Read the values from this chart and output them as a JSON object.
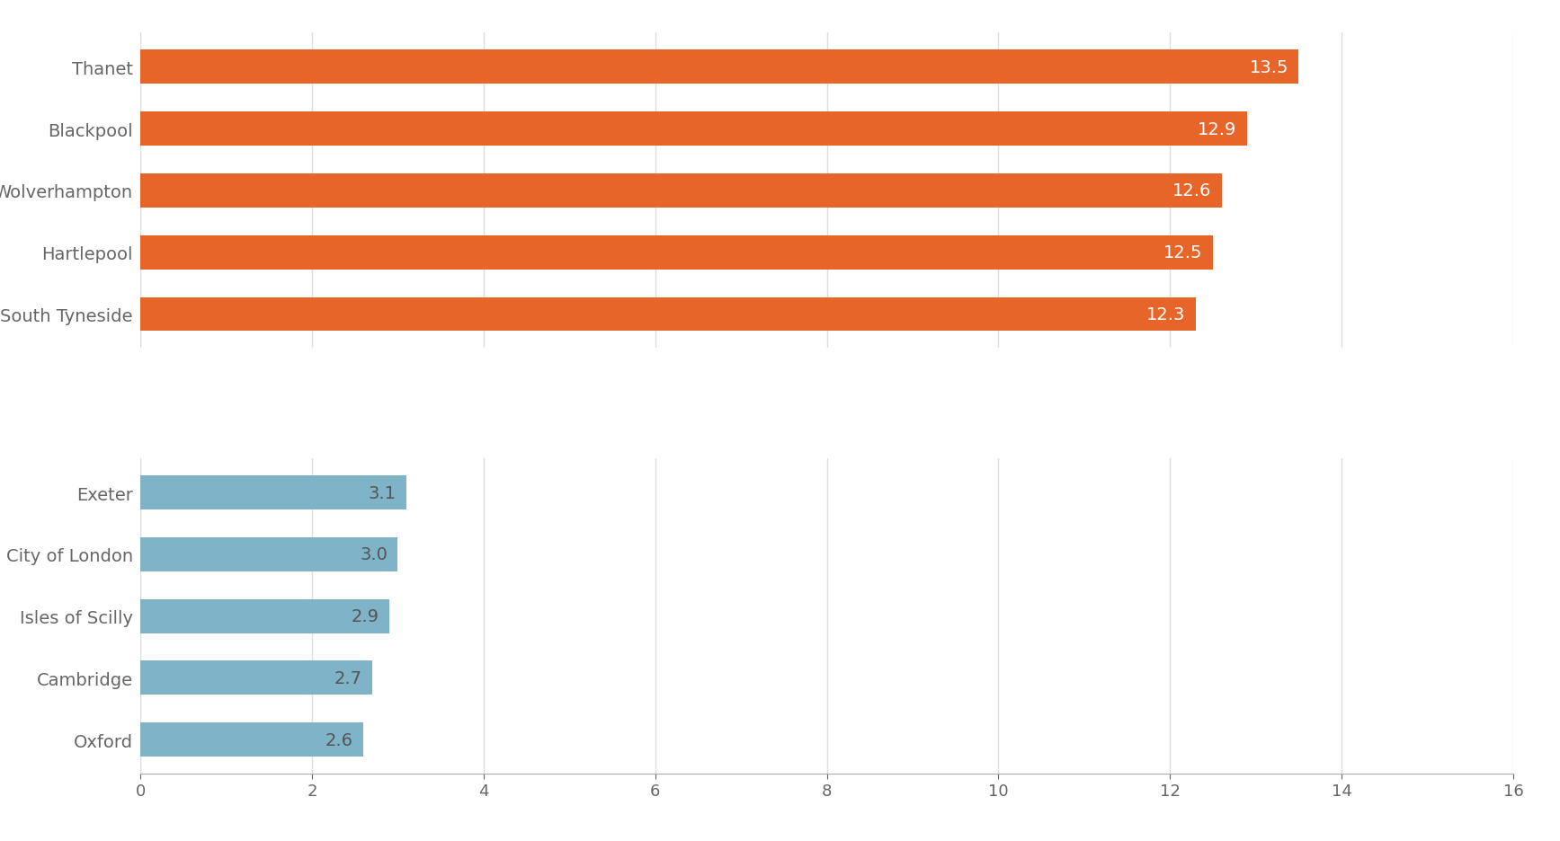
{
  "categories_high": [
    "South Tyneside",
    "Hartlepool",
    "Wolverhampton",
    "Blackpool",
    "Thanet"
  ],
  "values_high": [
    12.3,
    12.5,
    12.6,
    12.9,
    13.5
  ],
  "color_high": "#e8652a",
  "label_color_high": "#ffffff",
  "categories_low": [
    "Oxford",
    "Cambridge",
    "Isles of Scilly",
    "City of London",
    "Exeter"
  ],
  "values_low": [
    2.6,
    2.7,
    2.9,
    3.0,
    3.1
  ],
  "color_low": "#7fb3c8",
  "label_color_low": "#555555",
  "xlim": [
    0,
    16
  ],
  "xticks": [
    0,
    2,
    4,
    6,
    8,
    10,
    12,
    14,
    16
  ],
  "background_color": "#ffffff",
  "grid_color": "#dddddd",
  "bar_height": 0.55,
  "label_fontsize": 14,
  "tick_fontsize": 13,
  "ytick_fontsize": 14
}
